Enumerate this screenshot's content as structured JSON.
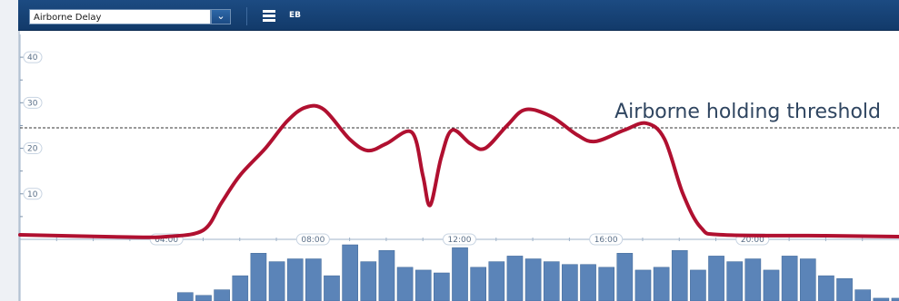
{
  "toolbar": {
    "select_value": "Airborne Delay",
    "select_arrow_icon": "chevron-down-icon",
    "mode_icon": "list-icon",
    "mode_label": "EB"
  },
  "threshold": {
    "label": "Airborne holding threshold",
    "value": 24.5
  },
  "colors": {
    "toolbar": "#123a6a",
    "curve": "#b01030",
    "bars": "#5b84b8",
    "threshold_line": "#333333"
  },
  "chart_data": {
    "type": "line",
    "y_ticks": [
      "10",
      "20",
      "30",
      "40"
    ],
    "ylim": [
      0,
      45
    ],
    "x_ticks": [
      "04:00",
      "08:00",
      "12:00",
      "16:00",
      "20:00"
    ],
    "x_tick_hours": [
      4,
      8,
      12,
      16,
      20
    ],
    "xlim": [
      0,
      24
    ],
    "series": [
      {
        "points": [
          [
            0.0,
            1
          ],
          [
            3.0,
            0.5
          ],
          [
            4.0,
            0.6
          ],
          [
            5.0,
            2
          ],
          [
            5.5,
            8
          ],
          [
            6.0,
            14
          ],
          [
            6.7,
            20
          ],
          [
            7.3,
            26
          ],
          [
            7.8,
            29
          ],
          [
            8.3,
            28.5
          ],
          [
            9.0,
            22
          ],
          [
            9.5,
            19.5
          ],
          [
            10.0,
            21
          ],
          [
            10.7,
            23.5
          ],
          [
            11.0,
            14
          ],
          [
            11.2,
            7.5
          ],
          [
            11.5,
            18
          ],
          [
            11.8,
            24
          ],
          [
            12.3,
            21
          ],
          [
            12.7,
            20
          ],
          [
            13.3,
            25
          ],
          [
            13.8,
            28.5
          ],
          [
            14.5,
            27
          ],
          [
            15.2,
            23
          ],
          [
            15.7,
            21.5
          ],
          [
            16.5,
            24
          ],
          [
            17.1,
            25.5
          ],
          [
            17.6,
            22
          ],
          [
            18.1,
            10
          ],
          [
            18.6,
            2.5
          ],
          [
            19.2,
            1
          ],
          [
            22.0,
            0.8
          ],
          [
            24.0,
            0.6
          ]
        ]
      }
    ],
    "bars": {
      "start_hour": 4.3,
      "step_hours": 0.5,
      "values": [
        3,
        2,
        4,
        9,
        17,
        14,
        15,
        15,
        9,
        20,
        14,
        18,
        12,
        11,
        10,
        19,
        12,
        14,
        16,
        15,
        14,
        13,
        13,
        12,
        17,
        11,
        12,
        18,
        11,
        16,
        14,
        15,
        11,
        16,
        15,
        9,
        8,
        4,
        1,
        1
      ]
    }
  }
}
